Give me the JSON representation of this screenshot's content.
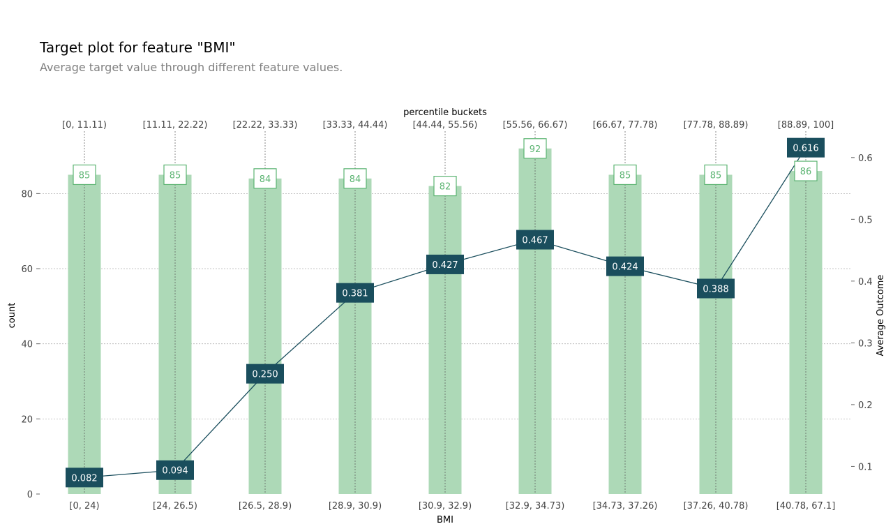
{
  "chart_data": {
    "type": "bar",
    "title": "Target plot for feature \"BMI\"",
    "subtitle": "Average target value through different feature values.",
    "xlabel": "BMI",
    "ylabel": "count",
    "y2label": "Average Outcome",
    "top_axis_label": "percentile buckets",
    "categories": [
      "[0, 24)",
      "[24, 26.5)",
      "[26.5, 28.9)",
      "[28.9, 30.9)",
      "[30.9, 32.9)",
      "[32.9, 34.73)",
      "[34.73, 37.26)",
      "[37.26, 40.78)",
      "[40.78, 67.1]"
    ],
    "percentile_buckets": [
      "[0, 11.11)",
      "[11.11, 22.22)",
      "[22.22, 33.33)",
      "[33.33, 44.44)",
      "[44.44, 55.56)",
      "[55.56, 66.67)",
      "[66.67, 77.78)",
      "[77.78, 88.89)",
      "[88.89, 100]"
    ],
    "series": [
      {
        "name": "count",
        "values": [
          85,
          85,
          84,
          84,
          82,
          92,
          85,
          85,
          86
        ]
      },
      {
        "name": "Average Outcome",
        "values": [
          0.082,
          0.094,
          0.25,
          0.381,
          0.427,
          0.467,
          0.424,
          0.388,
          0.616
        ]
      }
    ],
    "count_labels": [
      "85",
      "85",
      "84",
      "84",
      "82",
      "92",
      "85",
      "85",
      "86"
    ],
    "outcome_labels": [
      "0.082",
      "0.094",
      "0.250",
      "0.381",
      "0.427",
      "0.467",
      "0.424",
      "0.388",
      "0.616"
    ],
    "ylim": [
      0,
      96.6
    ],
    "y_ticks": [
      "0",
      "20",
      "40",
      "60",
      "80"
    ],
    "y2lim": [
      0.0553,
      0.6427
    ],
    "y2_ticks": [
      "0.1",
      "0.2",
      "0.3",
      "0.4",
      "0.5",
      "0.6"
    ],
    "grid": true,
    "colors": {
      "bar": "#add9b7",
      "bar_label": "#5cb472",
      "line": "#1a4e5d",
      "line_label_bg": "#1a4e5d",
      "line_label_text": "#ffffff",
      "grid": "#b3b3b3",
      "tick_text": "#424242"
    }
  }
}
